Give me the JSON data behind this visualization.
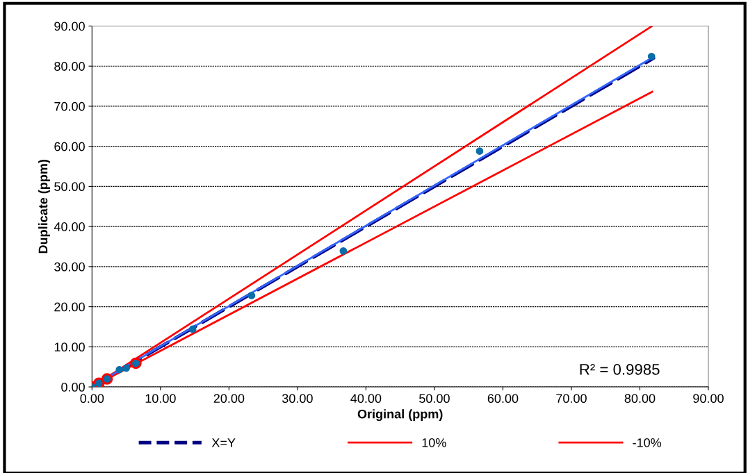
{
  "chart_data": {
    "type": "scatter",
    "xlabel": "Original (ppm)",
    "ylabel": "Duplicate (ppm)",
    "xlim": [
      0,
      90
    ],
    "ylim": [
      0,
      90
    ],
    "xticks": [
      {
        "value": 0,
        "label": "0.00"
      },
      {
        "value": 10,
        "label": "10.00"
      },
      {
        "value": 20,
        "label": "20.00"
      },
      {
        "value": 30,
        "label": "30.00"
      },
      {
        "value": 40,
        "label": "40.00"
      },
      {
        "value": 50,
        "label": "50.00"
      },
      {
        "value": 60,
        "label": "60.00"
      },
      {
        "value": 70,
        "label": "70.00"
      },
      {
        "value": 80,
        "label": "80.00"
      },
      {
        "value": 90,
        "label": "90.00"
      }
    ],
    "yticks": [
      {
        "value": 0,
        "label": "0.00"
      },
      {
        "value": 10,
        "label": "10.00"
      },
      {
        "value": 20,
        "label": "20.00"
      },
      {
        "value": 30,
        "label": "30.00"
      },
      {
        "value": 40,
        "label": "40.00"
      },
      {
        "value": 50,
        "label": "50.00"
      },
      {
        "value": 60,
        "label": "60.00"
      },
      {
        "value": 70,
        "label": "70.00"
      },
      {
        "value": 80,
        "label": "80.00"
      },
      {
        "value": 90,
        "label": "90.00"
      }
    ],
    "grid": "y",
    "legend": "bottom",
    "annotations": [
      "R² = 0.9985"
    ],
    "series": [
      {
        "name": "X=Y",
        "type": "line",
        "color": "#000080",
        "line_style": "dashed",
        "marker": "none",
        "x": [
          0,
          82
        ],
        "values": [
          0,
          82
        ]
      },
      {
        "name": "10%",
        "type": "line",
        "color": "#ff0000",
        "line_style": "solid",
        "marker": "none",
        "x": [
          0,
          81.8
        ],
        "values": [
          0,
          90
        ]
      },
      {
        "name": "-10%",
        "type": "line",
        "color": "#ff0000",
        "line_style": "solid",
        "marker": "none",
        "x": [
          0,
          81.8
        ],
        "values": [
          0,
          73.6
        ]
      },
      {
        "type": "line",
        "color": "#3366ff",
        "line_style": "solid",
        "marker": "none",
        "x": [
          0,
          81.7
        ],
        "values": [
          0.1,
          82.0
        ]
      },
      {
        "color": "#ff0000",
        "marker": "circle",
        "x": [
          0.0,
          1.0,
          2.2,
          6.4
        ],
        "values": [
          0.0,
          0.9,
          2.0,
          5.9
        ]
      },
      {
        "color": "#0a6eaa",
        "marker": "circle",
        "x": [
          0.0,
          1.0,
          2.2,
          4.0,
          5.0,
          6.4,
          14.7,
          23.3,
          36.7,
          56.6,
          81.7
        ],
        "values": [
          0.0,
          0.9,
          2.0,
          4.3,
          4.7,
          5.9,
          14.4,
          22.8,
          33.9,
          58.8,
          82.4
        ]
      }
    ]
  }
}
